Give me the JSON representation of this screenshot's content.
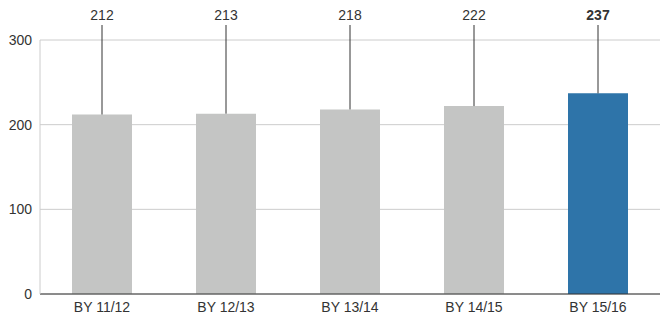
{
  "chart_data": {
    "type": "bar",
    "categories": [
      "BY 11/12",
      "BY 12/13",
      "BY 13/14",
      "BY 14/15",
      "BY 15/16"
    ],
    "values": [
      212,
      213,
      218,
      222,
      237
    ],
    "colors": [
      "#c4c5c4",
      "#c4c5c4",
      "#c4c5c4",
      "#c4c5c4",
      "#2e74a9"
    ],
    "ylim": [
      0,
      300
    ],
    "yticks": [
      0,
      100,
      200,
      300
    ],
    "grid": true,
    "data_labels": true
  }
}
